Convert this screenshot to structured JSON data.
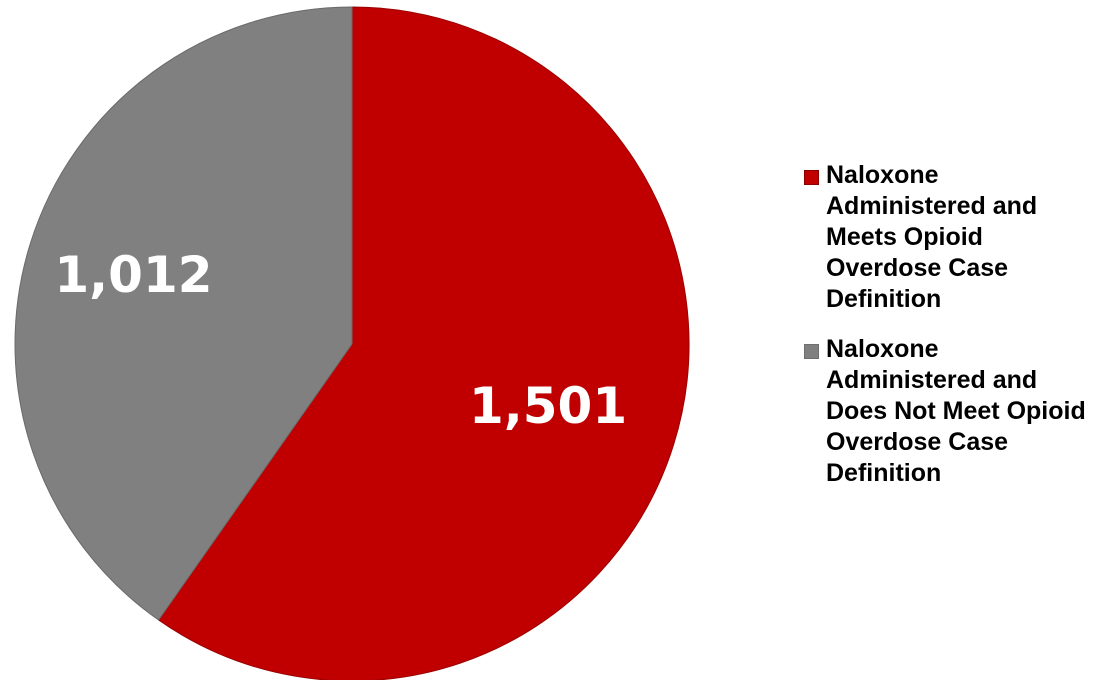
{
  "chart_data": {
    "type": "pie",
    "title": "",
    "colors": {
      "meets_definition": "#c00000",
      "does_not_meet": "#808080",
      "label_text": "#ffffff"
    },
    "slices": [
      {
        "name": "Naloxone Administered and Meets Opioid Overdose Case Definition",
        "value": 1501,
        "label": "1,501",
        "color": "#c00000"
      },
      {
        "name": "Naloxone Administered and Does Not Meet Opioid Overdose Case Definition",
        "value": 1012,
        "label": "1,012",
        "color": "#808080"
      }
    ],
    "legend_position": "right"
  }
}
